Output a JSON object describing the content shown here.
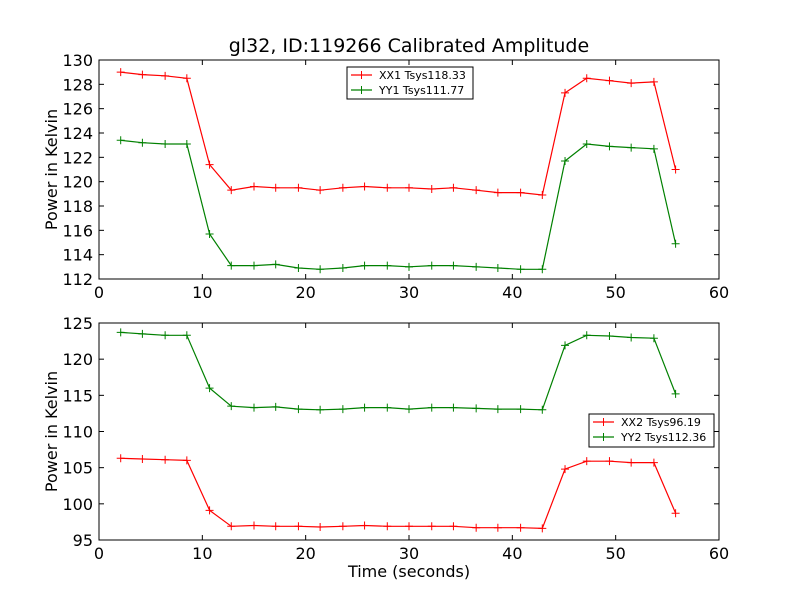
{
  "chart_data": [
    {
      "type": "line",
      "title": "gl32, ID:119266 Calibrated Amplitude",
      "xlabel": "",
      "ylabel": "Power in Kelvin",
      "xlim": [
        0,
        60
      ],
      "ylim": [
        112,
        130
      ],
      "xticks": [
        0,
        10,
        20,
        30,
        40,
        50,
        60
      ],
      "yticks": [
        112,
        114,
        116,
        118,
        120,
        122,
        124,
        126,
        128,
        130
      ],
      "grid": false,
      "legend_position": "upper-center",
      "x": [
        2.1,
        4.2,
        6.4,
        8.5,
        10.7,
        12.8,
        15.0,
        17.1,
        19.3,
        21.4,
        23.6,
        25.7,
        27.9,
        30.0,
        32.2,
        34.3,
        36.5,
        38.6,
        40.8,
        42.9,
        45.1,
        47.2,
        49.4,
        51.5,
        53.7,
        55.8
      ],
      "series": [
        {
          "name": "XX1 Tsys118.33",
          "color": "#ff0000",
          "values": [
            129.0,
            128.8,
            128.7,
            128.5,
            121.4,
            119.3,
            119.6,
            119.5,
            119.5,
            119.3,
            119.5,
            119.6,
            119.5,
            119.5,
            119.4,
            119.5,
            119.3,
            119.1,
            119.1,
            118.9,
            127.3,
            128.5,
            128.3,
            128.1,
            128.2,
            121.0
          ]
        },
        {
          "name": "YY1 Tsys111.77",
          "color": "#008000",
          "values": [
            123.4,
            123.2,
            123.1,
            123.1,
            115.7,
            113.1,
            113.1,
            113.2,
            112.9,
            112.8,
            112.9,
            113.1,
            113.1,
            113.0,
            113.1,
            113.1,
            113.0,
            112.9,
            112.8,
            112.8,
            121.7,
            123.1,
            122.9,
            122.8,
            122.7,
            114.9
          ]
        }
      ]
    },
    {
      "type": "line",
      "title": "",
      "xlabel": "Time (seconds)",
      "ylabel": "Power in Kelvin",
      "xlim": [
        0,
        60
      ],
      "ylim": [
        95,
        125
      ],
      "xticks": [
        0,
        10,
        20,
        30,
        40,
        50,
        60
      ],
      "yticks": [
        95,
        100,
        105,
        110,
        115,
        120,
        125
      ],
      "grid": false,
      "legend_position": "right",
      "x": [
        2.1,
        4.2,
        6.4,
        8.5,
        10.7,
        12.8,
        15.0,
        17.1,
        19.3,
        21.4,
        23.6,
        25.7,
        27.9,
        30.0,
        32.2,
        34.3,
        36.5,
        38.6,
        40.8,
        42.9,
        45.1,
        47.2,
        49.4,
        51.5,
        53.7,
        55.8
      ],
      "series": [
        {
          "name": "XX2 Tsys96.19",
          "color": "#ff0000",
          "values": [
            106.3,
            106.2,
            106.1,
            106.0,
            99.1,
            96.9,
            97.0,
            96.9,
            96.9,
            96.8,
            96.9,
            97.0,
            96.9,
            96.9,
            96.9,
            96.9,
            96.7,
            96.7,
            96.7,
            96.6,
            104.8,
            105.9,
            105.9,
            105.7,
            105.7,
            98.7
          ]
        },
        {
          "name": "YY2 Tsys112.36",
          "color": "#008000",
          "values": [
            123.7,
            123.5,
            123.3,
            123.3,
            116.0,
            113.5,
            113.3,
            113.4,
            113.1,
            113.0,
            113.1,
            113.3,
            113.3,
            113.1,
            113.3,
            113.3,
            113.2,
            113.1,
            113.1,
            113.0,
            121.9,
            123.3,
            123.2,
            123.0,
            122.9,
            115.2
          ]
        }
      ]
    }
  ]
}
